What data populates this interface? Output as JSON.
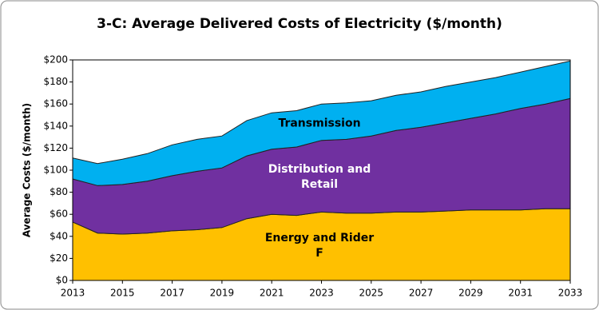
{
  "chart_data": {
    "type": "stacked-area",
    "title": "3-C: Average Delivered Costs of Electricity ($/month)",
    "y_label": "Average Costs ($/month)",
    "x": [
      2013,
      2014,
      2015,
      2016,
      2017,
      2018,
      2019,
      2020,
      2021,
      2022,
      2023,
      2024,
      2025,
      2026,
      2027,
      2028,
      2029,
      2030,
      2031,
      2032,
      2033
    ],
    "series": [
      {
        "name": "Energy and Rider F",
        "color": "#ffc000",
        "values": [
          53,
          43,
          42,
          43,
          45,
          46,
          48,
          56,
          60,
          59,
          62,
          61,
          61,
          62,
          62,
          63,
          64,
          64,
          64,
          65,
          65
        ]
      },
      {
        "name": "Distribution and Retail",
        "color": "#7030a0",
        "values": [
          39,
          43,
          45,
          47,
          50,
          53,
          54,
          57,
          59,
          62,
          65,
          67,
          70,
          74,
          77,
          80,
          83,
          87,
          92,
          95,
          100
        ]
      },
      {
        "name": "Transmission",
        "color": "#00b0f0",
        "values": [
          19,
          20,
          23,
          25,
          28,
          29,
          29,
          32,
          33,
          33,
          33,
          33,
          32,
          32,
          32,
          33,
          33,
          33,
          33,
          34,
          34
        ]
      }
    ],
    "xlim": [
      2013,
      2033
    ],
    "xticks": [
      2013,
      2015,
      2017,
      2019,
      2021,
      2023,
      2025,
      2027,
      2029,
      2031,
      2033
    ],
    "ylim": [
      0,
      200
    ],
    "yticks": [
      {
        "value": 0,
        "label": "$0"
      },
      {
        "value": 20,
        "label": "$20"
      },
      {
        "value": 40,
        "label": "$40"
      },
      {
        "value": 60,
        "label": "$60"
      },
      {
        "value": 80,
        "label": "$80"
      },
      {
        "value": 100,
        "label": "$100"
      },
      {
        "value": 120,
        "label": "$120"
      },
      {
        "value": 140,
        "label": "$140"
      },
      {
        "value": 160,
        "label": "$160"
      },
      {
        "value": 180,
        "label": "$180"
      },
      {
        "value": 200,
        "label": "$200"
      }
    ],
    "grid": false
  }
}
